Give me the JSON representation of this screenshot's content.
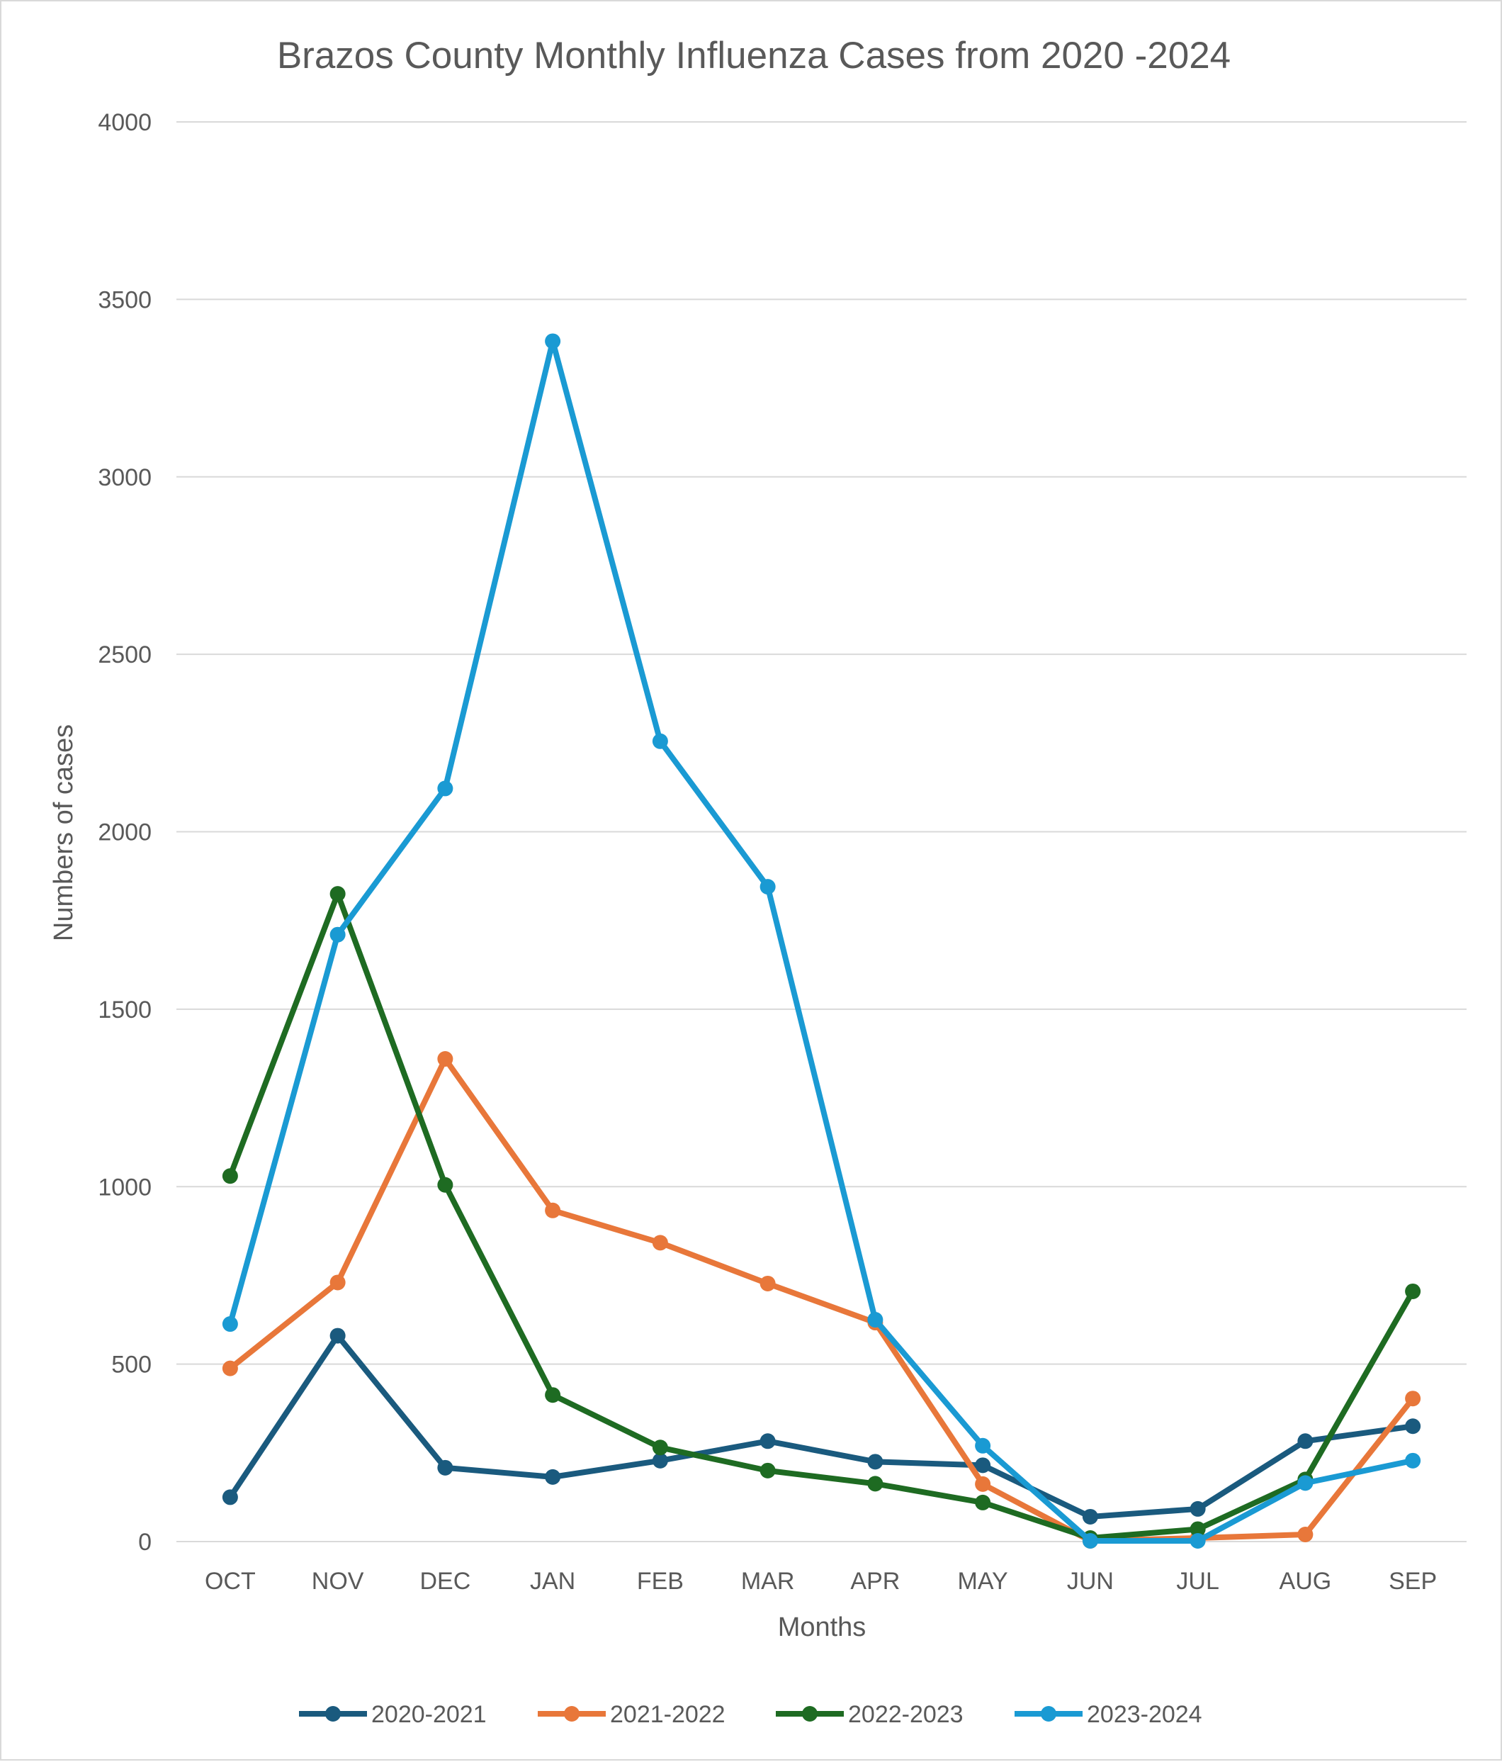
{
  "chart_data": {
    "type": "line",
    "title": "Brazos County Monthly Influenza Cases from 2020 -2024",
    "xlabel": "Months",
    "ylabel": "Numbers of cases",
    "categories": [
      "OCT",
      "NOV",
      "DEC",
      "JAN",
      "FEB",
      "MAR",
      "APR",
      "MAY",
      "JUN",
      "JUL",
      "AUG",
      "SEP"
    ],
    "ylim": [
      0,
      4000
    ],
    "yticks": [
      "0",
      "500",
      "1000",
      "1500",
      "2000",
      "2500",
      "3000",
      "3500",
      "4000"
    ],
    "grid": true,
    "legend_position": "bottom",
    "series": [
      {
        "name": "2020-2021",
        "color": "#1a5a7e",
        "values": [
          125,
          580,
          208,
          182,
          228,
          283,
          225,
          215,
          70,
          92,
          283,
          325
        ]
      },
      {
        "name": "2021-2022",
        "color": "#e8773a",
        "values": [
          488,
          730,
          1360,
          933,
          842,
          727,
          617,
          162,
          2,
          10,
          20,
          403
        ]
      },
      {
        "name": "2022-2023",
        "color": "#1e6b22",
        "values": [
          1030,
          1825,
          1005,
          413,
          265,
          200,
          163,
          110,
          10,
          35,
          175,
          705
        ]
      },
      {
        "name": "2023-2024",
        "color": "#1a9ad3",
        "values": [
          613,
          1710,
          2122,
          3382,
          2255,
          1845,
          625,
          270,
          2,
          2,
          165,
          228
        ]
      }
    ]
  }
}
